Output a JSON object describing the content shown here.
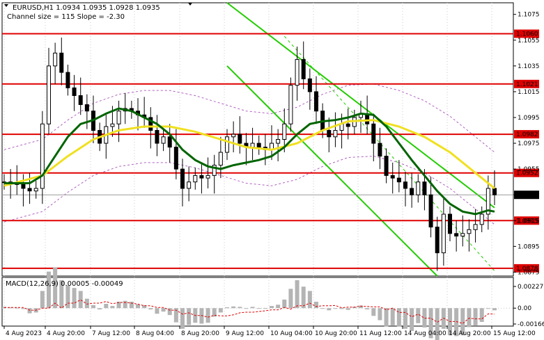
{
  "header": {
    "symbol_line": "EURUSD,H1  1.0934 1.0935 1.0928 1.0935",
    "channel_line": "Channel size = 115 Slope = -2.30"
  },
  "macd": {
    "label": "MACD(12,26,9) 0.00005 -0.00049",
    "axis_ticks": [
      "0.00227",
      "0.00",
      "-0.00166"
    ]
  },
  "price_axis": {
    "ticks": [
      "1.1075",
      "1.1055",
      "1.1035",
      "1.1015",
      "1.0995",
      "1.0975",
      "1.0955",
      "1.0935",
      "1.0915",
      "1.0895",
      "1.0875"
    ],
    "current_price": "1.0935"
  },
  "levels": [
    {
      "price": 1.106,
      "label": "1.1060"
    },
    {
      "price": 1.1021,
      "label": "1.1021"
    },
    {
      "price": 1.0982,
      "label": "1.0982"
    },
    {
      "price": 1.0952,
      "label": "1.0952"
    },
    {
      "price": 1.0915,
      "label": "1.0915"
    },
    {
      "price": 1.0878,
      "label": "1.0878"
    }
  ],
  "time_axis": [
    "4 Aug 2023",
    "4 Aug 20:00",
    "7 Aug 12:00",
    "8 Aug 04:00",
    "8 Aug 20:00",
    "9 Aug 12:00",
    "10 Aug 04:00",
    "10 Aug 20:00",
    "11 Aug 12:00",
    "14 Aug 04:00",
    "14 Aug 20:00",
    "15 Aug 12:00"
  ],
  "colors": {
    "level_line": "#e00000",
    "level_label_bg": "#e00000",
    "candle": "#000000",
    "ma_fast": "#006400",
    "ma_slow": "#f0e020",
    "channel": "#22cc00",
    "envelope": "#b060c0",
    "macd_hist": "#b4b4b4",
    "macd_signal": "#e00000"
  },
  "chart_data": {
    "type": "candlestick",
    "symbol": "EURUSD",
    "timeframe": "H1",
    "ylim": [
      1.0872,
      1.1084
    ],
    "x_range": [
      "4 Aug 2023",
      "15 Aug 12:00"
    ],
    "close_path": [
      [
        0,
        1.0945
      ],
      [
        1,
        1.0944
      ],
      [
        2,
        1.0943
      ],
      [
        3,
        1.094
      ],
      [
        4,
        1.0938
      ],
      [
        5,
        1.094
      ],
      [
        6,
        1.099
      ],
      [
        7,
        1.1035
      ],
      [
        8,
        1.1045
      ],
      [
        9,
        1.103
      ],
      [
        10,
        1.1018
      ],
      [
        11,
        1.1012
      ],
      [
        12,
        1.1005
      ],
      [
        13,
        1.1
      ],
      [
        14,
        1.0985
      ],
      [
        15,
        1.0975
      ],
      [
        16,
        1.0988
      ],
      [
        17,
        1.099
      ],
      [
        18,
        1.1
      ],
      [
        19,
        1.1002
      ],
      [
        20,
        1.1
      ],
      [
        21,
        1.0997
      ],
      [
        22,
        1.0995
      ],
      [
        23,
        1.0985
      ],
      [
        24,
        1.0975
      ],
      [
        25,
        1.098
      ],
      [
        26,
        1.0972
      ],
      [
        27,
        1.0955
      ],
      [
        28,
        1.094
      ],
      [
        29,
        1.0945
      ],
      [
        30,
        1.095
      ],
      [
        31,
        1.0948
      ],
      [
        32,
        1.095
      ],
      [
        33,
        1.0958
      ],
      [
        34,
        1.0968
      ],
      [
        35,
        1.098
      ],
      [
        36,
        1.0982
      ],
      [
        37,
        1.0975
      ],
      [
        38,
        1.0972
      ],
      [
        39,
        1.0975
      ],
      [
        40,
        1.0972
      ],
      [
        41,
        1.097
      ],
      [
        42,
        1.0975
      ],
      [
        43,
        1.0978
      ],
      [
        44,
        1.099
      ],
      [
        45,
        1.102
      ],
      [
        46,
        1.104
      ],
      [
        47,
        1.1025
      ],
      [
        48,
        1.1015
      ],
      [
        49,
        1.1
      ],
      [
        50,
        1.0985
      ],
      [
        51,
        1.098
      ],
      [
        52,
        1.0985
      ],
      [
        53,
        1.099
      ],
      [
        54,
        1.0988
      ],
      [
        55,
        1.0995
      ],
      [
        56,
        1.0998
      ],
      [
        57,
        1.099
      ],
      [
        58,
        1.0975
      ],
      [
        59,
        1.0965
      ],
      [
        60,
        1.095
      ],
      [
        61,
        1.0948
      ],
      [
        62,
        1.0945
      ],
      [
        63,
        1.094
      ],
      [
        64,
        1.0935
      ],
      [
        65,
        1.0945
      ],
      [
        66,
        1.0935
      ],
      [
        67,
        1.091
      ],
      [
        68,
        1.089
      ],
      [
        69,
        1.092
      ],
      [
        70,
        1.0905
      ],
      [
        71,
        1.0903
      ],
      [
        72,
        1.0905
      ],
      [
        73,
        1.0908
      ],
      [
        74,
        1.0912
      ],
      [
        75,
        1.092
      ],
      [
        76,
        1.094
      ],
      [
        77,
        1.0935
      ]
    ],
    "ma_fast_path": [
      [
        0,
        1.0944
      ],
      [
        4,
        1.0944
      ],
      [
        6,
        1.095
      ],
      [
        8,
        1.0965
      ],
      [
        10,
        1.098
      ],
      [
        12,
        1.099
      ],
      [
        14,
        1.0993
      ],
      [
        16,
        1.0998
      ],
      [
        18,
        1.1002
      ],
      [
        20,
        1.1
      ],
      [
        22,
        1.0995
      ],
      [
        24,
        1.099
      ],
      [
        26,
        1.0982
      ],
      [
        28,
        1.097
      ],
      [
        30,
        1.0962
      ],
      [
        32,
        1.0957
      ],
      [
        34,
        1.0955
      ],
      [
        36,
        1.0958
      ],
      [
        38,
        1.096
      ],
      [
        40,
        1.0962
      ],
      [
        42,
        1.0965
      ],
      [
        44,
        1.0972
      ],
      [
        46,
        1.0982
      ],
      [
        48,
        1.099
      ],
      [
        50,
        1.0992
      ],
      [
        52,
        1.0993
      ],
      [
        54,
        1.0995
      ],
      [
        56,
        1.0998
      ],
      [
        58,
        1.0997
      ],
      [
        60,
        1.0988
      ],
      [
        62,
        1.0975
      ],
      [
        64,
        1.0962
      ],
      [
        66,
        1.095
      ],
      [
        68,
        1.0938
      ],
      [
        70,
        1.0928
      ],
      [
        72,
        1.0922
      ],
      [
        74,
        1.092
      ],
      [
        76,
        1.0923
      ],
      [
        77,
        1.0922
      ]
    ],
    "ma_slow_path": [
      [
        0,
        1.0942
      ],
      [
        6,
        1.095
      ],
      [
        10,
        1.0965
      ],
      [
        14,
        1.0978
      ],
      [
        18,
        1.0985
      ],
      [
        22,
        1.0988
      ],
      [
        26,
        1.0988
      ],
      [
        30,
        1.0984
      ],
      [
        34,
        1.0978
      ],
      [
        38,
        1.0972
      ],
      [
        42,
        1.097
      ],
      [
        46,
        1.0975
      ],
      [
        50,
        1.0985
      ],
      [
        54,
        1.0992
      ],
      [
        58,
        1.0993
      ],
      [
        62,
        1.0988
      ],
      [
        66,
        1.098
      ],
      [
        70,
        1.0968
      ],
      [
        74,
        1.0952
      ],
      [
        77,
        1.094
      ]
    ],
    "channel_lines": [
      {
        "name": "upper",
        "from": [
          35,
          1.1084
        ],
        "to": [
          77,
          1.0925
        ]
      },
      {
        "name": "lower",
        "from": [
          35,
          1.1035
        ],
        "to": [
          68,
          1.0872
        ]
      },
      {
        "name": "middle",
        "from": [
          44,
          1.1058
        ],
        "to": [
          77,
          1.0876
        ]
      }
    ],
    "levels": [
      1.106,
      1.1021,
      1.0982,
      1.0952,
      1.0915,
      1.0878
    ],
    "macd_ylim": [
      -0.00166,
      0.00227
    ]
  }
}
